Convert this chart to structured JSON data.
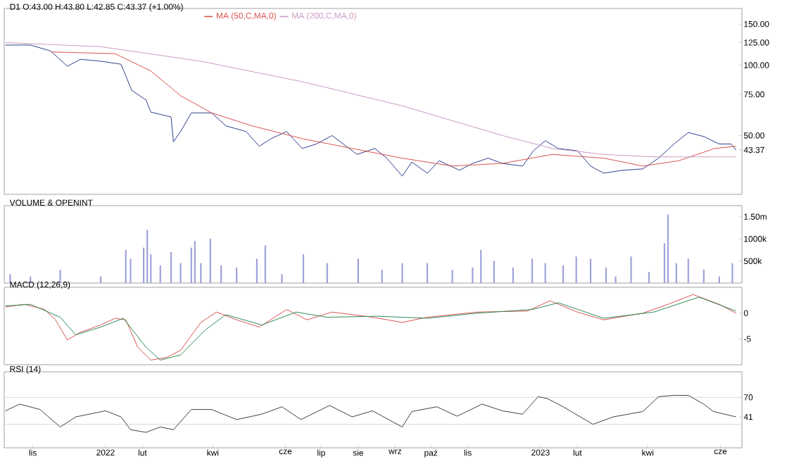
{
  "chart_data": [
    {
      "type": "line",
      "title": "D1 O:43.00 H:43.80 L:42.85 C:43.37 (+1.00%)",
      "log": "y",
      "legend": "top left",
      "tick_labels": "y",
      "xlim": [
        "2021-10-08",
        "2023-06-19"
      ],
      "ylim": [
        28,
        175
      ],
      "yticks": [
        {
          "value": 150,
          "label": "150.00"
        },
        {
          "value": 125,
          "label": "125.00"
        },
        {
          "value": 100,
          "label": "100.00"
        },
        {
          "value": 75,
          "label": "75.00"
        },
        {
          "value": 50,
          "label": "50.00"
        },
        {
          "value": 43.37,
          "label": "43.37"
        }
      ],
      "series": [
        {
          "color": "#2f3e8a",
          "x": [
            "2021-10-09",
            "2021-10-30",
            "2021-11-16",
            "2021-11-30",
            "2021-12-11",
            "2021-12-28",
            "2022-01-14",
            "2022-01-23",
            "2022-02-04",
            "2022-02-08",
            "2022-02-25",
            "2022-02-27",
            "2022-03-05",
            "2022-03-14",
            "2022-03-31",
            "2022-04-12",
            "2022-04-29",
            "2022-05-10",
            "2022-05-20",
            "2022-06-02",
            "2022-06-15",
            "2022-06-27",
            "2022-07-10",
            "2022-07-22",
            "2022-07-31",
            "2022-08-15",
            "2022-08-25",
            "2022-09-07",
            "2022-09-15",
            "2022-09-28",
            "2022-10-08",
            "2022-10-25",
            "2022-11-05",
            "2022-11-18",
            "2022-11-30",
            "2022-12-17",
            "2022-12-26",
            "2023-01-05",
            "2023-01-16",
            "2023-02-01",
            "2023-02-12",
            "2023-02-23",
            "2023-03-11",
            "2023-03-28",
            "2023-04-10",
            "2023-04-23",
            "2023-05-05",
            "2023-05-18",
            "2023-05-31",
            "2023-06-10",
            "2023-06-14"
          ],
          "values": [
            122,
            122,
            115,
            99,
            106,
            104,
            101,
            78,
            71,
            63,
            60,
            47,
            52,
            62.5,
            62.5,
            55,
            52,
            45,
            48.5,
            52,
            44,
            46,
            50,
            45,
            41.5,
            44,
            40,
            33.5,
            38.5,
            34.5,
            39,
            35.5,
            38,
            40,
            38,
            37,
            43,
            47.5,
            44,
            43,
            37,
            34.5,
            35.5,
            36,
            40,
            46,
            51.5,
            49.5,
            46,
            46,
            43.37
          ]
        },
        {
          "name": "MA (50,C,MA,0)",
          "color": "#d9534f",
          "x": [
            "2021-11-16",
            "2022-01-09",
            "2022-02-08",
            "2022-03-05",
            "2022-03-31",
            "2022-05-04",
            "2022-06-15",
            "2022-07-27",
            "2022-09-07",
            "2022-10-19",
            "2022-11-30",
            "2023-01-11",
            "2023-02-23",
            "2023-03-28",
            "2023-04-27",
            "2023-05-27",
            "2023-06-14"
          ],
          "values": [
            114,
            112,
            94.5,
            74,
            62.5,
            55,
            48.5,
            44,
            40,
            37,
            38,
            41.5,
            40,
            37,
            39,
            44,
            45
          ]
        },
        {
          "name": "MA (200,C,MA,0)",
          "color": "#c99ac2",
          "x": [
            "2021-10-09",
            "2021-12-28",
            "2022-03-22",
            "2022-06-15",
            "2022-09-07",
            "2022-11-30",
            "2023-01-11",
            "2023-02-23",
            "2023-04-06",
            "2023-06-14"
          ],
          "values": [
            125,
            120,
            104,
            85,
            67,
            50,
            44,
            41.5,
            40.5,
            40.5
          ]
        }
      ]
    },
    {
      "type": "bar",
      "title": "VOLUME & OPENINT",
      "tick_labels": "y",
      "xlim": [
        "2021-10-08",
        "2023-06-19"
      ],
      "ylim": [
        0,
        1750000
      ],
      "yticks": [
        {
          "value": 500000,
          "label": "500k"
        },
        {
          "value": 1000000,
          "label": "1000k"
        },
        {
          "value": 1500000,
          "label": "1.50m"
        }
      ],
      "color": "#9ea2d8",
      "x": [
        "2021-10-13",
        "2021-10-30",
        "2021-11-24",
        "2021-12-28",
        "2022-01-18",
        "2022-01-22",
        "2022-02-02",
        "2022-02-05",
        "2022-02-08",
        "2022-02-16",
        "2022-02-25",
        "2022-03-05",
        "2022-03-14",
        "2022-03-17",
        "2022-03-22",
        "2022-03-30",
        "2022-04-08",
        "2022-04-21",
        "2022-05-08",
        "2022-05-15",
        "2022-05-29",
        "2022-06-16",
        "2022-07-06",
        "2022-08-01",
        "2022-08-21",
        "2022-09-07",
        "2022-09-28",
        "2022-10-19",
        "2022-11-05",
        "2022-11-12",
        "2022-11-23",
        "2022-12-09",
        "2022-12-25",
        "2023-01-05",
        "2023-01-20",
        "2023-01-31",
        "2023-02-12",
        "2023-02-25",
        "2023-03-05",
        "2023-03-18",
        "2023-04-02",
        "2023-04-15",
        "2023-04-18",
        "2023-04-25",
        "2023-05-05",
        "2023-05-18",
        "2023-05-31",
        "2023-06-11"
      ],
      "values": [
        200000,
        150000,
        300000,
        150000,
        750000,
        550000,
        800000,
        1200000,
        650000,
        400000,
        700000,
        450000,
        800000,
        950000,
        450000,
        1000000,
        400000,
        350000,
        550000,
        850000,
        200000,
        650000,
        450000,
        550000,
        300000,
        450000,
        450000,
        300000,
        350000,
        750000,
        500000,
        350000,
        550000,
        450000,
        400000,
        600000,
        550000,
        350000,
        150000,
        600000,
        250000,
        900000,
        1550000,
        450000,
        550000,
        300000,
        150000,
        450000
      ]
    },
    {
      "type": "line",
      "title": "MACD (12,26,9)",
      "tick_labels": "y",
      "xlim": [
        "2021-10-08",
        "2023-06-19"
      ],
      "ylim": [
        -10,
        5
      ],
      "yticks": [
        -5,
        0
      ],
      "series": [
        {
          "color": "#d9534f",
          "x": [
            "2021-10-09",
            "2021-10-25",
            "2021-11-11",
            "2021-11-20",
            "2021-11-30",
            "2021-12-11",
            "2021-12-28",
            "2022-01-09",
            "2022-01-18",
            "2022-01-28",
            "2022-02-08",
            "2022-02-21",
            "2022-03-05",
            "2022-03-22",
            "2022-04-04",
            "2022-04-21",
            "2022-05-10",
            "2022-06-02",
            "2022-06-19",
            "2022-07-10",
            "2022-08-13",
            "2022-09-07",
            "2022-09-28",
            "2022-11-09",
            "2022-12-21",
            "2023-01-09",
            "2023-02-01",
            "2023-02-23",
            "2023-03-28",
            "2023-04-18",
            "2023-05-09",
            "2023-05-31",
            "2023-06-14"
          ],
          "values": [
            1.2,
            1.7,
            0.7,
            -1.3,
            -5.2,
            -3.7,
            -2.3,
            -1.0,
            -1.3,
            -6.6,
            -9.1,
            -8.6,
            -7.2,
            -1.8,
            0.2,
            -1.3,
            -2.7,
            0.7,
            -1.3,
            0.2,
            -0.8,
            -1.8,
            -0.8,
            0.2,
            0.4,
            2.4,
            0.2,
            -1.3,
            0,
            1.7,
            3.6,
            1.7,
            0
          ]
        },
        {
          "color": "#2e8b57",
          "x": [
            "2021-10-09",
            "2021-10-30",
            "2021-11-24",
            "2021-12-07",
            "2021-12-28",
            "2022-01-16",
            "2022-02-04",
            "2022-02-16",
            "2022-03-05",
            "2022-03-26",
            "2022-04-12",
            "2022-05-12",
            "2022-06-10",
            "2022-07-06",
            "2022-08-17",
            "2022-09-28",
            "2022-11-09",
            "2022-12-25",
            "2023-01-16",
            "2023-02-23",
            "2023-04-06",
            "2023-05-14",
            "2023-06-14"
          ],
          "values": [
            1.4,
            1.7,
            -0.8,
            -4.2,
            -2.7,
            -1.0,
            -6.6,
            -9.1,
            -8.1,
            -3.2,
            -0.3,
            -2.3,
            0.2,
            -0.8,
            -0.6,
            -1.0,
            0,
            0.7,
            2.0,
            -1.0,
            0.2,
            3.1,
            0.4
          ]
        }
      ]
    },
    {
      "type": "line",
      "title": "RSI (14)",
      "xlim": [
        "2021-10-08",
        "2023-06-19"
      ],
      "ylim": [
        -5,
        108
      ],
      "xticks": [
        {
          "value": "2021-11-01",
          "label": "lis"
        },
        {
          "value": "2022-01-01",
          "label": "2022"
        },
        {
          "value": "2022-02-01",
          "label": "lut"
        },
        {
          "value": "2022-04-01",
          "label": "kwi"
        },
        {
          "value": "2022-06-01",
          "label": "cze"
        },
        {
          "value": "2022-07-01",
          "label": "lip"
        },
        {
          "value": "2022-08-01",
          "label": "sie"
        },
        {
          "value": "2022-09-01",
          "label": "wrz"
        },
        {
          "value": "2022-10-01",
          "label": "paź"
        },
        {
          "value": "2022-11-01",
          "label": "lis"
        },
        {
          "value": "2023-01-01",
          "label": "2023"
        },
        {
          "value": "2023-02-01",
          "label": "lut"
        },
        {
          "value": "2023-04-01",
          "label": "kwi"
        },
        {
          "value": "2023-06-01",
          "label": "cze"
        }
      ],
      "yticks": [
        70,
        {
          "value": 41,
          "label": "41"
        }
      ],
      "ref_lines": [
        {
          "axis": "y",
          "value": 70,
          "color": "#d0d0d0"
        },
        {
          "axis": "y",
          "value": 30,
          "color": "#d0d0d0"
        }
      ],
      "series": [
        {
          "color": "#404040",
          "x": [
            "2021-10-09",
            "2021-10-21",
            "2021-11-07",
            "2021-11-24",
            "2021-12-07",
            "2022-01-01",
            "2022-01-14",
            "2022-01-22",
            "2022-02-04",
            "2022-02-16",
            "2022-02-27",
            "2022-03-14",
            "2022-03-31",
            "2022-04-21",
            "2022-05-12",
            "2022-05-29",
            "2022-06-14",
            "2022-07-08",
            "2022-07-27",
            "2022-08-13",
            "2022-09-07",
            "2022-09-15",
            "2022-10-06",
            "2022-10-23",
            "2022-11-13",
            "2022-11-30",
            "2022-12-17",
            "2022-12-30",
            "2023-01-07",
            "2023-01-20",
            "2023-02-14",
            "2023-03-03",
            "2023-03-28",
            "2023-04-10",
            "2023-04-23",
            "2023-05-05",
            "2023-05-18",
            "2023-05-26",
            "2023-06-14"
          ],
          "values": [
            50,
            60,
            52,
            26,
            41,
            50,
            41,
            22,
            18,
            26,
            22,
            52,
            52,
            37,
            45,
            56,
            37,
            58,
            41,
            50,
            26,
            49,
            56,
            42,
            60,
            50,
            45,
            71,
            68,
            56,
            30,
            41,
            49,
            71,
            73,
            73,
            60,
            49,
            41
          ]
        }
      ]
    }
  ]
}
